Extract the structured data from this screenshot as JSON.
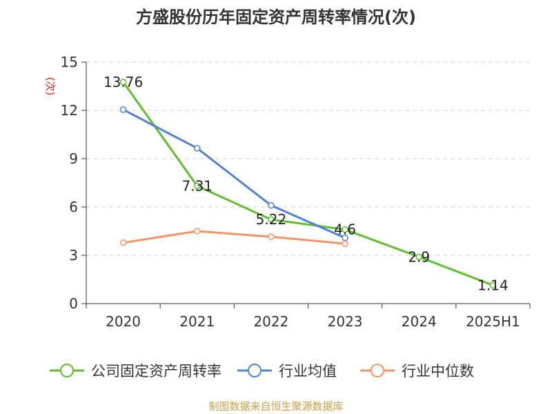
{
  "chart_data": {
    "type": "line",
    "title": "方盛股份历年固定资产周转率情况(次)",
    "ylabel": "(次)",
    "categories": [
      "2020",
      "2021",
      "2022",
      "2023",
      "2024",
      "2025H1"
    ],
    "ylim": [
      0,
      15
    ],
    "yticks": [
      0,
      3,
      6,
      9,
      12,
      15
    ],
    "grid": true,
    "legend_position": "bottom",
    "series": [
      {
        "name": "公司固定资产周转率",
        "color": "#5cc02a",
        "values": [
          13.76,
          7.31,
          5.22,
          4.6,
          2.9,
          1.14
        ],
        "data_labels": [
          "13.76",
          "7.31",
          "5.22",
          "4.6",
          "2.9",
          "1.14"
        ]
      },
      {
        "name": "行业均值",
        "color": "#4f80db",
        "values": [
          12.05,
          9.65,
          6.1,
          4.08,
          null,
          null
        ]
      },
      {
        "name": "行业中位数",
        "color": "#f59362",
        "values": [
          3.78,
          4.5,
          4.15,
          3.72,
          null,
          null
        ]
      }
    ]
  },
  "source": "制图数据来自恒生聚源数据库"
}
